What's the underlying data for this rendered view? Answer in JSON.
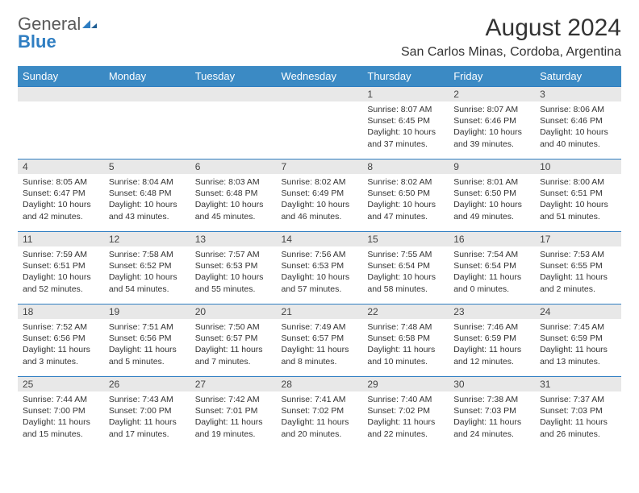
{
  "logo": {
    "text1": "General",
    "text2": "Blue"
  },
  "title": "August 2024",
  "location": "San Carlos Minas, Cordoba, Argentina",
  "colors": {
    "header_bg": "#3b8ac4",
    "header_text": "#ffffff",
    "daynum_bg": "#e8e8e8",
    "row_border": "#2f7ec2",
    "body_text": "#333333",
    "logo_gray": "#5a5a5a",
    "logo_blue": "#2f7ec2"
  },
  "typography": {
    "title_fontsize": 30,
    "location_fontsize": 16,
    "dayheader_fontsize": 13,
    "daynum_fontsize": 12,
    "body_fontsize": 10.5
  },
  "weekdays": [
    "Sunday",
    "Monday",
    "Tuesday",
    "Wednesday",
    "Thursday",
    "Friday",
    "Saturday"
  ],
  "weeks": [
    [
      {
        "empty": true
      },
      {
        "empty": true
      },
      {
        "empty": true
      },
      {
        "empty": true
      },
      {
        "day": "1",
        "sunrise": "Sunrise: 8:07 AM",
        "sunset": "Sunset: 6:45 PM",
        "daylight": "Daylight: 10 hours and 37 minutes."
      },
      {
        "day": "2",
        "sunrise": "Sunrise: 8:07 AM",
        "sunset": "Sunset: 6:46 PM",
        "daylight": "Daylight: 10 hours and 39 minutes."
      },
      {
        "day": "3",
        "sunrise": "Sunrise: 8:06 AM",
        "sunset": "Sunset: 6:46 PM",
        "daylight": "Daylight: 10 hours and 40 minutes."
      }
    ],
    [
      {
        "day": "4",
        "sunrise": "Sunrise: 8:05 AM",
        "sunset": "Sunset: 6:47 PM",
        "daylight": "Daylight: 10 hours and 42 minutes."
      },
      {
        "day": "5",
        "sunrise": "Sunrise: 8:04 AM",
        "sunset": "Sunset: 6:48 PM",
        "daylight": "Daylight: 10 hours and 43 minutes."
      },
      {
        "day": "6",
        "sunrise": "Sunrise: 8:03 AM",
        "sunset": "Sunset: 6:48 PM",
        "daylight": "Daylight: 10 hours and 45 minutes."
      },
      {
        "day": "7",
        "sunrise": "Sunrise: 8:02 AM",
        "sunset": "Sunset: 6:49 PM",
        "daylight": "Daylight: 10 hours and 46 minutes."
      },
      {
        "day": "8",
        "sunrise": "Sunrise: 8:02 AM",
        "sunset": "Sunset: 6:50 PM",
        "daylight": "Daylight: 10 hours and 47 minutes."
      },
      {
        "day": "9",
        "sunrise": "Sunrise: 8:01 AM",
        "sunset": "Sunset: 6:50 PM",
        "daylight": "Daylight: 10 hours and 49 minutes."
      },
      {
        "day": "10",
        "sunrise": "Sunrise: 8:00 AM",
        "sunset": "Sunset: 6:51 PM",
        "daylight": "Daylight: 10 hours and 51 minutes."
      }
    ],
    [
      {
        "day": "11",
        "sunrise": "Sunrise: 7:59 AM",
        "sunset": "Sunset: 6:51 PM",
        "daylight": "Daylight: 10 hours and 52 minutes."
      },
      {
        "day": "12",
        "sunrise": "Sunrise: 7:58 AM",
        "sunset": "Sunset: 6:52 PM",
        "daylight": "Daylight: 10 hours and 54 minutes."
      },
      {
        "day": "13",
        "sunrise": "Sunrise: 7:57 AM",
        "sunset": "Sunset: 6:53 PM",
        "daylight": "Daylight: 10 hours and 55 minutes."
      },
      {
        "day": "14",
        "sunrise": "Sunrise: 7:56 AM",
        "sunset": "Sunset: 6:53 PM",
        "daylight": "Daylight: 10 hours and 57 minutes."
      },
      {
        "day": "15",
        "sunrise": "Sunrise: 7:55 AM",
        "sunset": "Sunset: 6:54 PM",
        "daylight": "Daylight: 10 hours and 58 minutes."
      },
      {
        "day": "16",
        "sunrise": "Sunrise: 7:54 AM",
        "sunset": "Sunset: 6:54 PM",
        "daylight": "Daylight: 11 hours and 0 minutes."
      },
      {
        "day": "17",
        "sunrise": "Sunrise: 7:53 AM",
        "sunset": "Sunset: 6:55 PM",
        "daylight": "Daylight: 11 hours and 2 minutes."
      }
    ],
    [
      {
        "day": "18",
        "sunrise": "Sunrise: 7:52 AM",
        "sunset": "Sunset: 6:56 PM",
        "daylight": "Daylight: 11 hours and 3 minutes."
      },
      {
        "day": "19",
        "sunrise": "Sunrise: 7:51 AM",
        "sunset": "Sunset: 6:56 PM",
        "daylight": "Daylight: 11 hours and 5 minutes."
      },
      {
        "day": "20",
        "sunrise": "Sunrise: 7:50 AM",
        "sunset": "Sunset: 6:57 PM",
        "daylight": "Daylight: 11 hours and 7 minutes."
      },
      {
        "day": "21",
        "sunrise": "Sunrise: 7:49 AM",
        "sunset": "Sunset: 6:57 PM",
        "daylight": "Daylight: 11 hours and 8 minutes."
      },
      {
        "day": "22",
        "sunrise": "Sunrise: 7:48 AM",
        "sunset": "Sunset: 6:58 PM",
        "daylight": "Daylight: 11 hours and 10 minutes."
      },
      {
        "day": "23",
        "sunrise": "Sunrise: 7:46 AM",
        "sunset": "Sunset: 6:59 PM",
        "daylight": "Daylight: 11 hours and 12 minutes."
      },
      {
        "day": "24",
        "sunrise": "Sunrise: 7:45 AM",
        "sunset": "Sunset: 6:59 PM",
        "daylight": "Daylight: 11 hours and 13 minutes."
      }
    ],
    [
      {
        "day": "25",
        "sunrise": "Sunrise: 7:44 AM",
        "sunset": "Sunset: 7:00 PM",
        "daylight": "Daylight: 11 hours and 15 minutes."
      },
      {
        "day": "26",
        "sunrise": "Sunrise: 7:43 AM",
        "sunset": "Sunset: 7:00 PM",
        "daylight": "Daylight: 11 hours and 17 minutes."
      },
      {
        "day": "27",
        "sunrise": "Sunrise: 7:42 AM",
        "sunset": "Sunset: 7:01 PM",
        "daylight": "Daylight: 11 hours and 19 minutes."
      },
      {
        "day": "28",
        "sunrise": "Sunrise: 7:41 AM",
        "sunset": "Sunset: 7:02 PM",
        "daylight": "Daylight: 11 hours and 20 minutes."
      },
      {
        "day": "29",
        "sunrise": "Sunrise: 7:40 AM",
        "sunset": "Sunset: 7:02 PM",
        "daylight": "Daylight: 11 hours and 22 minutes."
      },
      {
        "day": "30",
        "sunrise": "Sunrise: 7:38 AM",
        "sunset": "Sunset: 7:03 PM",
        "daylight": "Daylight: 11 hours and 24 minutes."
      },
      {
        "day": "31",
        "sunrise": "Sunrise: 7:37 AM",
        "sunset": "Sunset: 7:03 PM",
        "daylight": "Daylight: 11 hours and 26 minutes."
      }
    ]
  ]
}
